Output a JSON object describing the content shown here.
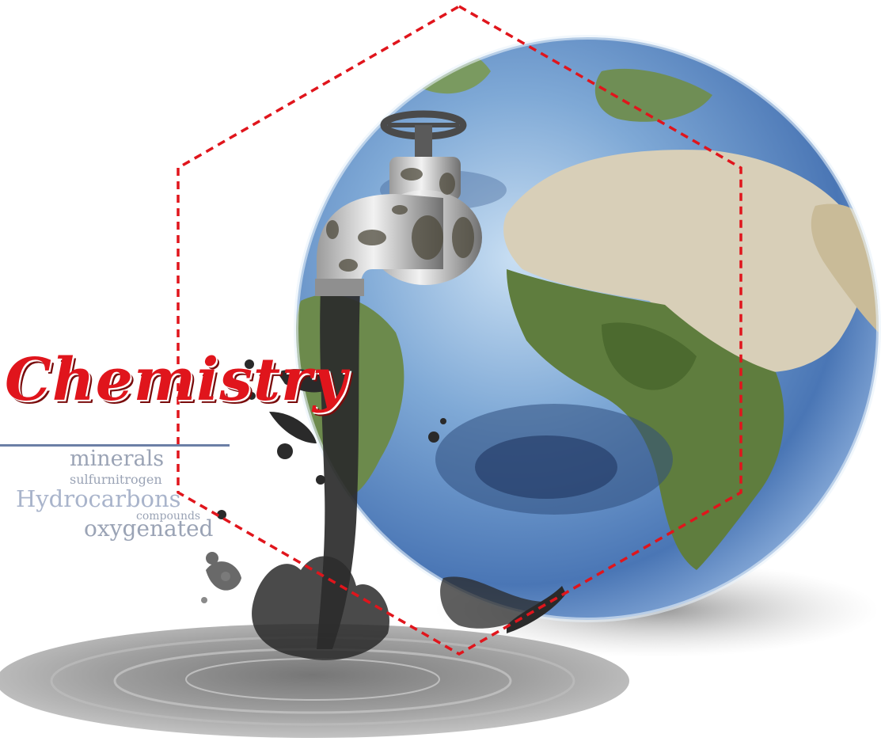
{
  "title": "Chemistry",
  "words": {
    "minerals": "minerals",
    "sulfurnitrogen": "sulfurnitrogen",
    "hydrocarbons": "Hydrocarbons",
    "compounds": "compounds",
    "oxygenated": "oxygenated"
  },
  "colors": {
    "title_red": "#e0151c",
    "hexagon_dash": "#e0151c",
    "word_gray": "#9aa3b5",
    "underline_blue": "#6b7fa6"
  }
}
